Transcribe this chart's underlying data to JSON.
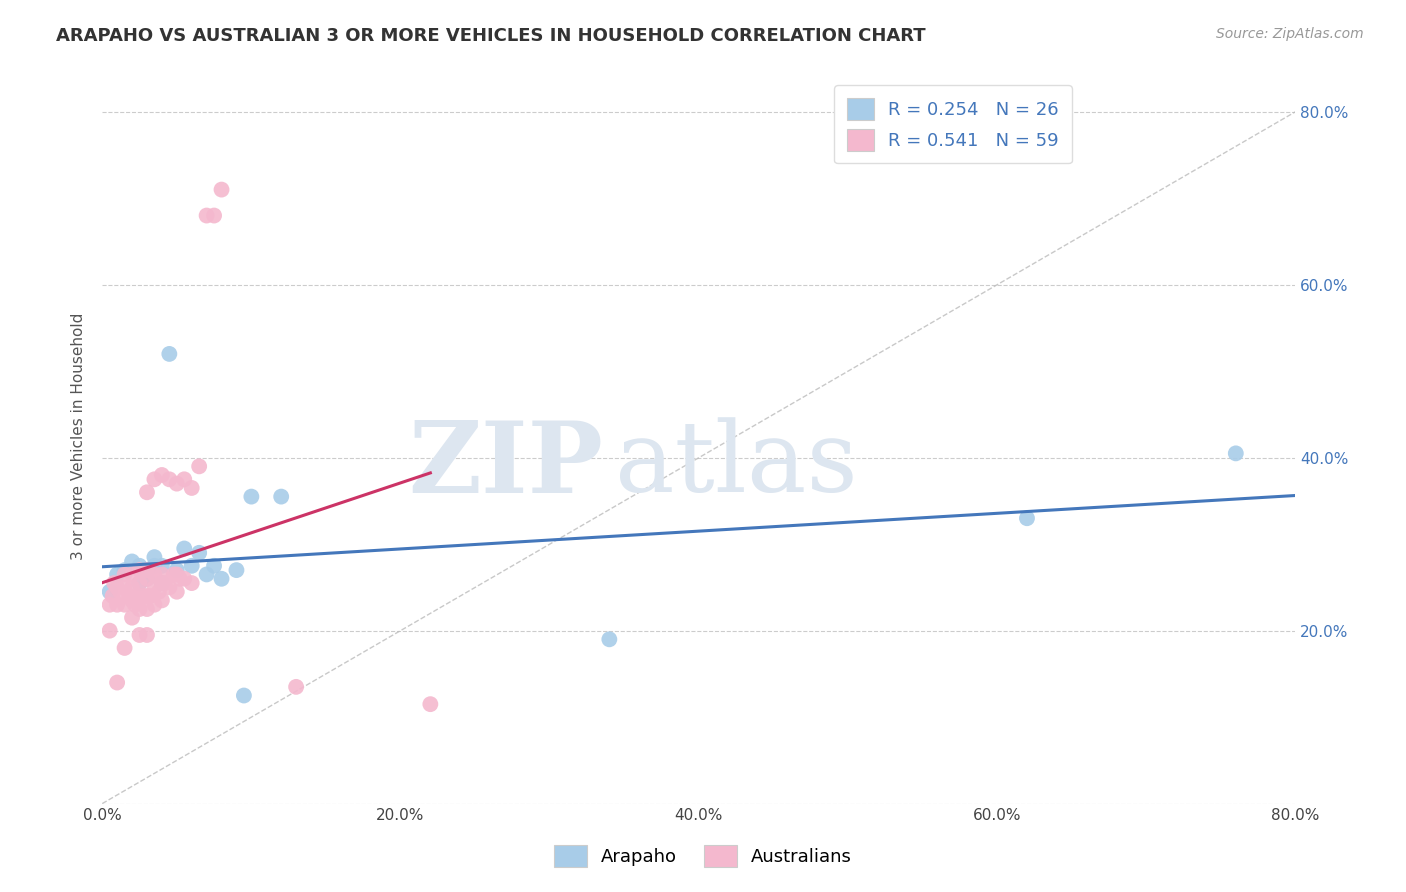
{
  "title": "ARAPAHO VS AUSTRALIAN 3 OR MORE VEHICLES IN HOUSEHOLD CORRELATION CHART",
  "source_text": "Source: ZipAtlas.com",
  "ylabel": "3 or more Vehicles in Household",
  "xlim": [
    0.0,
    0.8
  ],
  "ylim": [
    0.0,
    0.85
  ],
  "x_ticks": [
    0.0,
    0.2,
    0.4,
    0.6,
    0.8
  ],
  "x_tick_labels": [
    "0.0%",
    "20.0%",
    "40.0%",
    "60.0%",
    "80.0%"
  ],
  "y_ticks": [
    0.0,
    0.2,
    0.4,
    0.6,
    0.8
  ],
  "y_tick_labels_right": [
    "",
    "20.0%",
    "40.0%",
    "60.0%",
    "80.0%"
  ],
  "legend_labels": [
    "Arapaho",
    "Australians"
  ],
  "arapaho_color": "#a8cce8",
  "australian_color": "#f4b8ce",
  "arapaho_line_color": "#4477bb",
  "australian_line_color": "#cc3366",
  "arapaho_R": 0.254,
  "arapaho_N": 26,
  "australian_R": 0.541,
  "australian_N": 59,
  "watermark_zip": "ZIP",
  "watermark_atlas": "atlas",
  "arapaho_x": [
    0.005,
    0.01,
    0.015,
    0.02,
    0.025,
    0.025,
    0.03,
    0.035,
    0.035,
    0.04,
    0.04,
    0.045,
    0.05,
    0.055,
    0.06,
    0.065,
    0.07,
    0.075,
    0.08,
    0.09,
    0.095,
    0.1,
    0.12,
    0.34,
    0.62,
    0.76
  ],
  "arapaho_y": [
    0.245,
    0.265,
    0.27,
    0.28,
    0.255,
    0.275,
    0.26,
    0.275,
    0.285,
    0.255,
    0.275,
    0.52,
    0.27,
    0.295,
    0.275,
    0.29,
    0.265,
    0.275,
    0.26,
    0.27,
    0.125,
    0.355,
    0.355,
    0.19,
    0.33,
    0.405
  ],
  "australian_x": [
    0.005,
    0.005,
    0.007,
    0.008,
    0.01,
    0.01,
    0.01,
    0.012,
    0.015,
    0.015,
    0.015,
    0.015,
    0.018,
    0.02,
    0.02,
    0.02,
    0.02,
    0.022,
    0.022,
    0.025,
    0.025,
    0.025,
    0.025,
    0.025,
    0.028,
    0.03,
    0.03,
    0.03,
    0.03,
    0.03,
    0.03,
    0.032,
    0.035,
    0.035,
    0.035,
    0.035,
    0.038,
    0.04,
    0.04,
    0.04,
    0.04,
    0.042,
    0.045,
    0.045,
    0.048,
    0.05,
    0.05,
    0.05,
    0.052,
    0.055,
    0.055,
    0.06,
    0.06,
    0.065,
    0.07,
    0.075,
    0.08,
    0.13,
    0.22
  ],
  "australian_y": [
    0.2,
    0.23,
    0.24,
    0.255,
    0.14,
    0.23,
    0.25,
    0.245,
    0.18,
    0.23,
    0.25,
    0.265,
    0.24,
    0.215,
    0.235,
    0.25,
    0.265,
    0.23,
    0.24,
    0.195,
    0.225,
    0.24,
    0.255,
    0.27,
    0.24,
    0.195,
    0.225,
    0.24,
    0.26,
    0.27,
    0.36,
    0.24,
    0.23,
    0.25,
    0.265,
    0.375,
    0.245,
    0.235,
    0.255,
    0.265,
    0.38,
    0.255,
    0.25,
    0.375,
    0.265,
    0.245,
    0.265,
    0.37,
    0.26,
    0.26,
    0.375,
    0.255,
    0.365,
    0.39,
    0.68,
    0.68,
    0.71,
    0.135,
    0.115
  ]
}
